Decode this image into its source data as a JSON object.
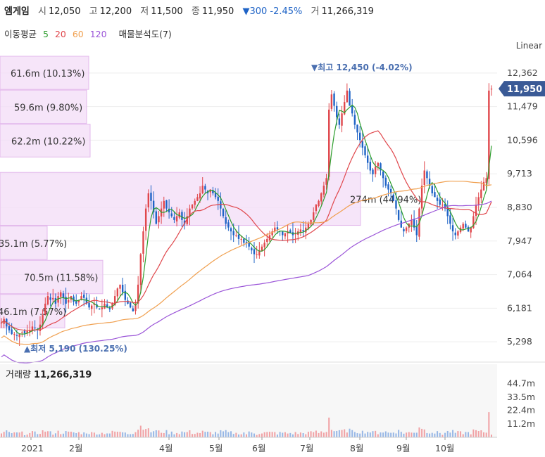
{
  "header": {
    "name": "엠게임",
    "open_label": "시",
    "open": "12,050",
    "high_label": "고",
    "high": "12,200",
    "low_label": "저",
    "low": "11,500",
    "close_label": "종",
    "close": "11,950",
    "change": "▼300 -2.45%",
    "volume_label": "거",
    "volume": "11,266,319"
  },
  "ma_legend": {
    "label": "이동평균",
    "p5": "5",
    "p20": "20",
    "p60": "60",
    "p120": "120",
    "vp_label": "매물분석도(7)",
    "colors": {
      "p5": "#2e9e2e",
      "p20": "#e0474c",
      "p60": "#f0a050",
      "p120": "#9b55d8"
    }
  },
  "scale_label": "Linear",
  "chart_data": {
    "type": "candlestick",
    "price_axis": {
      "ylim": [
        4857,
        12803
      ],
      "ticks": [
        "12,362",
        "11,479",
        "10,596",
        "9,713",
        "8,830",
        "7,947",
        "7,064",
        "6,181",
        "5,298"
      ]
    },
    "x_labels": [
      "2021",
      "2월",
      "4월",
      "5월",
      "6월",
      "7월",
      "8월",
      "9월",
      "10월"
    ],
    "current_price": "11,950",
    "max_label": "▼최고 12,450 (-4.02%)",
    "min_label": "▲최저 5,190 (130.25%)",
    "volume_profile": [
      {
        "label": "61.6m (10.13%)",
        "low": 11913,
        "high": 12803
      },
      {
        "label": "59.6m (9.80%)",
        "low": 11016,
        "high": 11913
      },
      {
        "label": "62.2m (10.22%)",
        "low": 10136,
        "high": 11016
      },
      {
        "label": "274m (44.94%)",
        "low": 8339,
        "high": 9750
      },
      {
        "label": "35.1m (5.77%)",
        "low": 7440,
        "high": 8339
      },
      {
        "label": "70.5m (11.58%)",
        "low": 6543,
        "high": 7440
      },
      {
        "label": "46.1m (7.57%)",
        "low": 5645,
        "high": 6543
      }
    ],
    "closes": [
      5800,
      5900,
      5700,
      5600,
      5500,
      5500,
      5450,
      5500,
      5550,
      5520,
      5580,
      5600,
      5700,
      5650,
      5600,
      5750,
      6000,
      6300,
      6500,
      6400,
      6450,
      6300,
      6500,
      6600,
      6450,
      6300,
      6400,
      6500,
      6350,
      6300,
      6400,
      6500,
      6450,
      6300,
      6200,
      6250,
      6300,
      6200,
      6150,
      6200,
      6300,
      6200,
      6150,
      6300,
      6500,
      6700,
      6800,
      6600,
      6400,
      6300,
      6200,
      6100,
      6300,
      6800,
      7600,
      8200,
      8800,
      9200,
      9000,
      8700,
      8400,
      8600,
      8800,
      9000,
      8800,
      8700,
      8600,
      8500,
      8600,
      8700,
      8500,
      8400,
      8600,
      8800,
      8900,
      9000,
      9100,
      9200,
      9400,
      9300,
      9200,
      9300,
      9200,
      9100,
      9000,
      8800,
      8600,
      8400,
      8300,
      8200,
      8100,
      8100,
      8000,
      8000,
      7900,
      7900,
      7800,
      7700,
      7600,
      7600,
      7700,
      7800,
      7900,
      8000,
      8100,
      8200,
      8300,
      8250,
      8200,
      8100,
      8150,
      8200,
      8150,
      8100,
      8150,
      8200,
      8250,
      8200,
      8300,
      8400,
      8500,
      8700,
      8900,
      9000,
      9200,
      9400,
      9600,
      11400,
      11800,
      11500,
      11200,
      11000,
      11300,
      11600,
      11900,
      11500,
      11300,
      11000,
      10800,
      10600,
      10400,
      10200,
      10000,
      9800,
      9700,
      9900,
      10000,
      9800,
      9600,
      9400,
      9300,
      9200,
      9000,
      8800,
      8500,
      8300,
      8200,
      8300,
      8400,
      8500,
      8300,
      8100,
      8800,
      9400,
      9800,
      9600,
      9400,
      9200,
      9100,
      9000,
      8900,
      8900,
      8800,
      8600,
      8400,
      8200,
      8100,
      8200,
      8300,
      8400,
      8300,
      8200,
      8300,
      8600,
      8900,
      9100,
      9300,
      9500,
      9600,
      11900,
      11950
    ],
    "volume_axis": {
      "ylim": [
        0,
        48000000
      ],
      "ticks": [
        "44.7m",
        "33.5m",
        "22.4m",
        "11.2m"
      ]
    },
    "volume": "11,266,319"
  },
  "volume_title": "거래량"
}
